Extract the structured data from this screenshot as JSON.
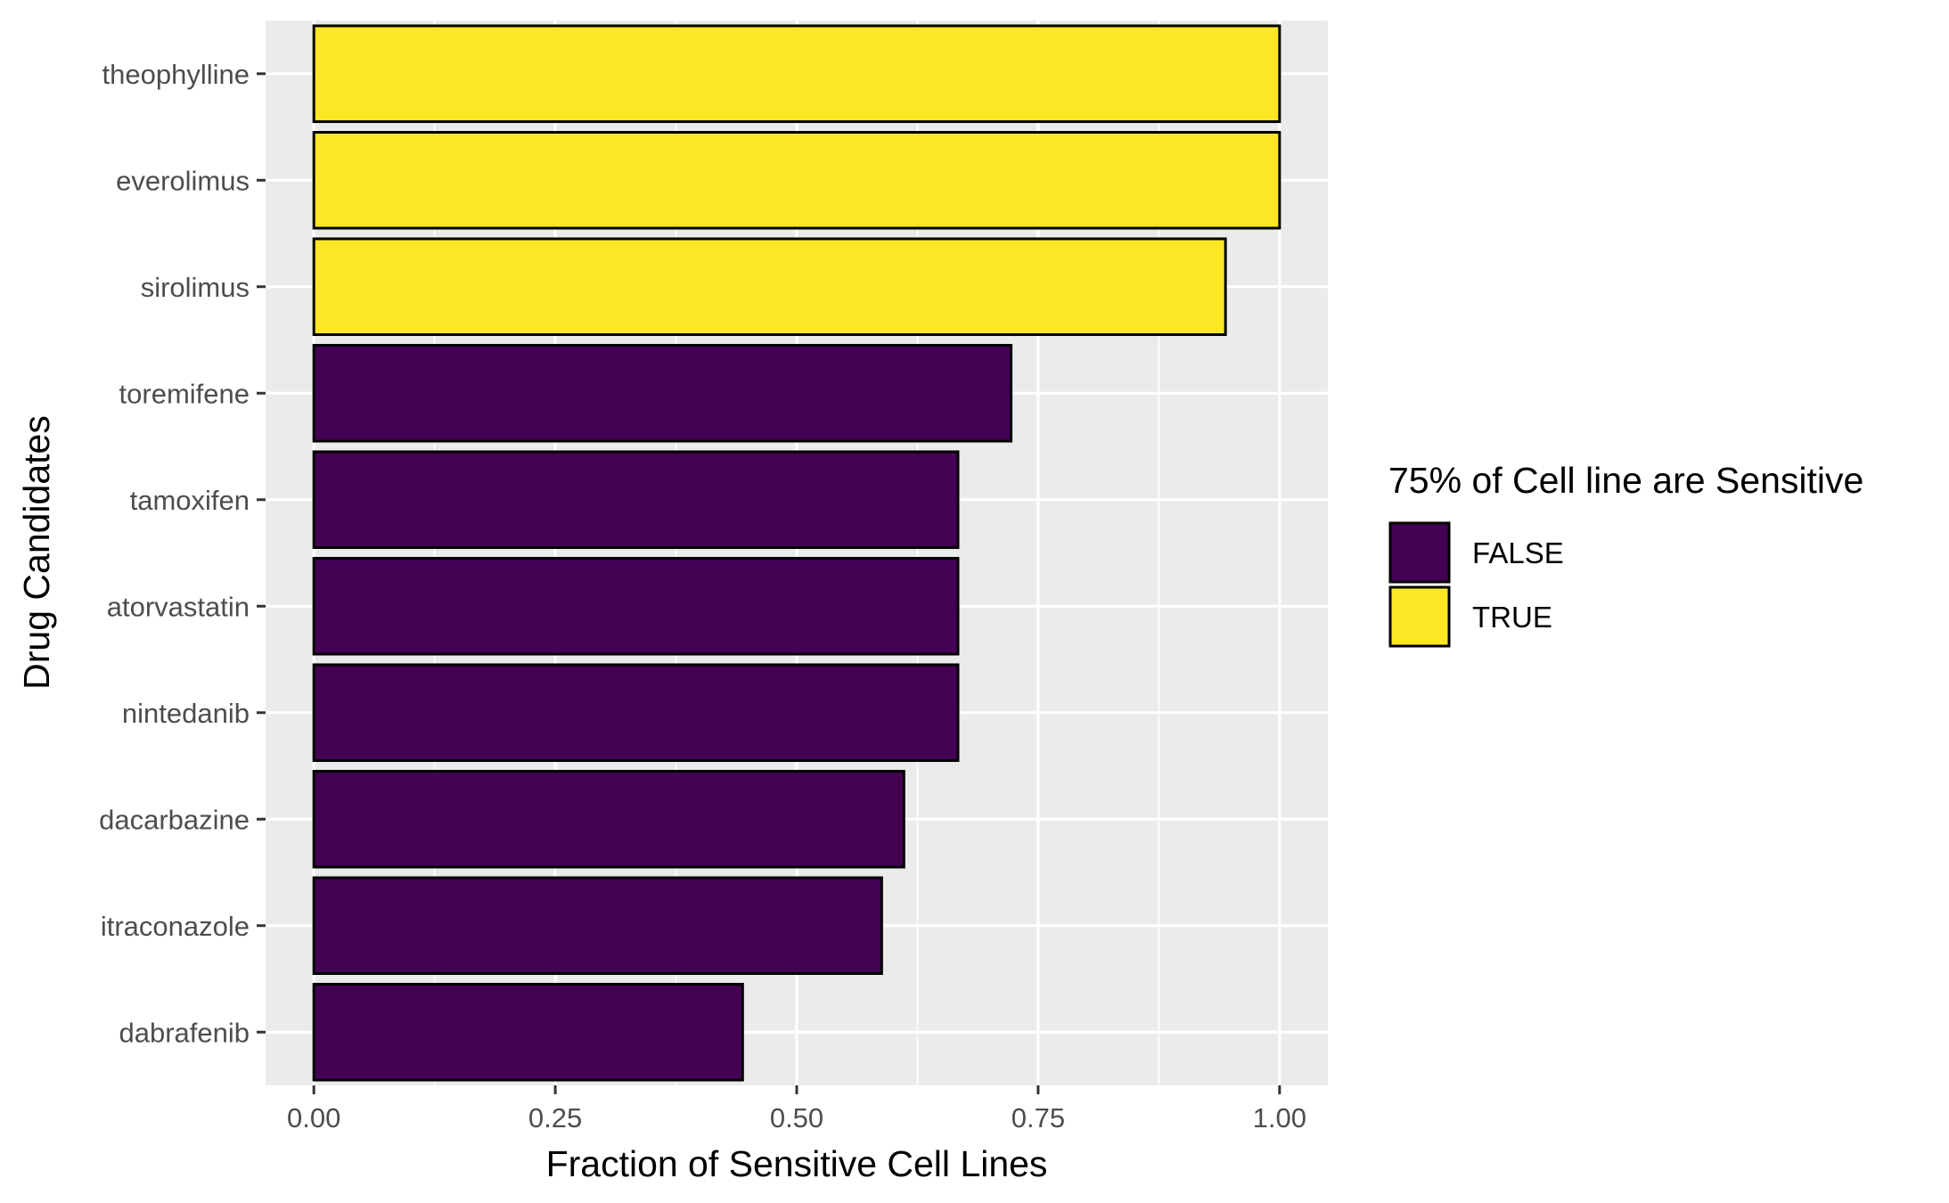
{
  "chart_data": {
    "type": "bar",
    "orientation": "horizontal",
    "categories": [
      "theophylline",
      "everolimus",
      "sirolimus",
      "toremifene",
      "tamoxifen",
      "atorvastatin",
      "nintedanib",
      "dacarbazine",
      "itraconazole",
      "dabrafenib"
    ],
    "values": [
      1.0,
      1.0,
      0.944,
      0.722,
      0.667,
      0.667,
      0.667,
      0.611,
      0.588,
      0.444
    ],
    "groups": [
      "TRUE",
      "TRUE",
      "TRUE",
      "FALSE",
      "FALSE",
      "FALSE",
      "FALSE",
      "FALSE",
      "FALSE",
      "FALSE"
    ],
    "xlabel": "Fraction of Sensitive Cell Lines",
    "ylabel": "Drug Candidates",
    "xlim": [
      -0.05,
      1.05
    ],
    "xticks": [
      0,
      0.25,
      0.5,
      0.75,
      1.0
    ],
    "xtick_labels": [
      "0.00",
      "0.25",
      "0.50",
      "0.75",
      "1.00"
    ],
    "grid": true,
    "legend": {
      "title": "75% of Cell line are Sensitive",
      "position": "right",
      "items": [
        {
          "label": "FALSE",
          "color": "#440154"
        },
        {
          "label": "TRUE",
          "color": "#FDE725"
        }
      ]
    },
    "colors": {
      "FALSE": "#440154",
      "TRUE": "#FDE725",
      "bar_outline": "#000000",
      "panel_background": "#EBEBEB",
      "grid": "#FFFFFF"
    }
  }
}
